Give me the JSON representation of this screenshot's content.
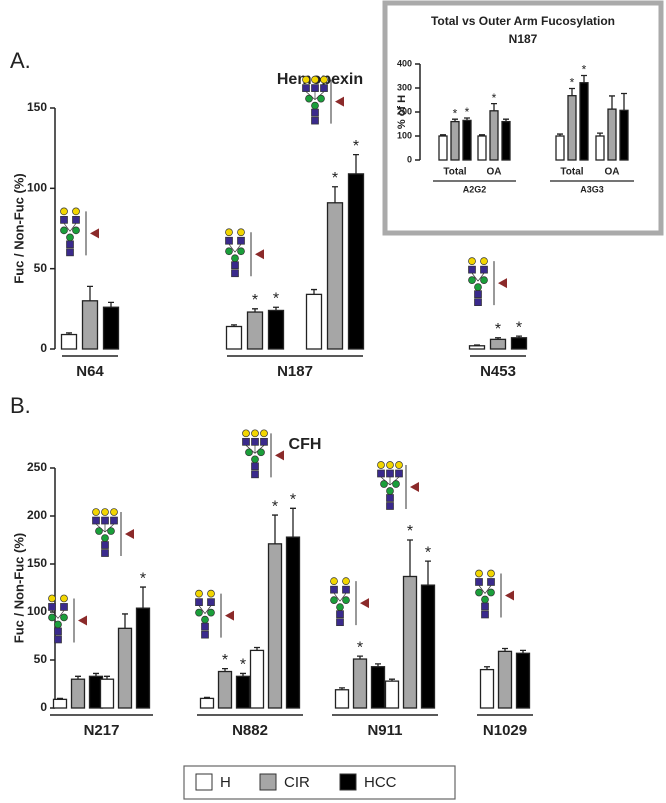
{
  "chart_data": [
    {
      "type": "bar",
      "panel": "A.",
      "title": "Hemopexin",
      "y_label": "Fuc / Non-Fuc (%)",
      "categories": [
        "N64",
        "N187",
        null,
        "N453"
      ],
      "ylim": [
        0,
        150
      ],
      "yticks": [
        0,
        50,
        100,
        150
      ],
      "marker": "*",
      "series": [
        {
          "name": "H",
          "color": "#ffffff",
          "values": [
            9,
            14,
            34,
            2
          ],
          "errors": [
            1,
            1,
            3,
            0.5
          ],
          "starred": [
            false,
            false,
            false,
            false
          ]
        },
        {
          "name": "CIR",
          "color": "#a6a6a6",
          "values": [
            30,
            23,
            91,
            6
          ],
          "errors": [
            9,
            2,
            10,
            1
          ],
          "starred": [
            false,
            true,
            true,
            true
          ]
        },
        {
          "name": "HCC",
          "color": "#000000",
          "values": [
            26,
            24,
            109,
            7
          ],
          "errors": [
            3,
            2,
            12,
            1
          ],
          "starred": [
            false,
            true,
            true,
            true
          ]
        }
      ]
    },
    {
      "type": "bar",
      "title": "Total vs Outer Arm Fucosylation",
      "subtitle": "N187",
      "y_label": "% of H",
      "categories": [
        "Total",
        "OA",
        "Total",
        "OA"
      ],
      "groups": [
        "A2G2",
        "A3G3"
      ],
      "ylim": [
        0,
        400
      ],
      "yticks": [
        0,
        100,
        200,
        300,
        400
      ],
      "marker": "*",
      "series": [
        {
          "name": "H",
          "color": "#ffffff",
          "values": [
            100,
            100,
            100,
            100
          ],
          "errors": [
            5,
            5,
            8,
            12
          ],
          "starred": [
            false,
            false,
            false,
            false
          ]
        },
        {
          "name": "CIR",
          "color": "#a6a6a6",
          "values": [
            160,
            205,
            268,
            212
          ],
          "errors": [
            10,
            30,
            30,
            55
          ],
          "starred": [
            true,
            true,
            true,
            false
          ]
        },
        {
          "name": "HCC",
          "color": "#000000",
          "values": [
            165,
            160,
            322,
            207
          ],
          "errors": [
            10,
            10,
            30,
            70
          ],
          "starred": [
            true,
            false,
            true,
            false
          ]
        }
      ]
    },
    {
      "type": "bar",
      "panel": "B.",
      "title": "CFH",
      "y_label": "Fuc / Non-Fuc (%)",
      "categories": [
        "N217",
        null,
        "N882",
        null,
        "N911",
        null,
        "N1029"
      ],
      "ylim": [
        0,
        250
      ],
      "yticks": [
        0,
        50,
        100,
        150,
        200,
        250
      ],
      "marker": "*",
      "series": [
        {
          "name": "H",
          "color": "#ffffff",
          "values": [
            9,
            30,
            10,
            60,
            19,
            28,
            40
          ],
          "errors": [
            1,
            3,
            1,
            3,
            2,
            2,
            3
          ],
          "starred": [
            false,
            false,
            false,
            false,
            false,
            false,
            false
          ]
        },
        {
          "name": "CIR",
          "color": "#a6a6a6",
          "values": [
            30,
            83,
            38,
            171,
            51,
            137,
            59
          ],
          "errors": [
            3,
            15,
            3,
            30,
            3,
            38,
            3
          ],
          "starred": [
            false,
            false,
            true,
            true,
            true,
            true,
            false
          ]
        },
        {
          "name": "HCC",
          "color": "#000000",
          "values": [
            33,
            104,
            33,
            178,
            43,
            128,
            57
          ],
          "errors": [
            3,
            22,
            3,
            30,
            3,
            25,
            3
          ],
          "starred": [
            false,
            true,
            true,
            true,
            false,
            true,
            false
          ]
        }
      ]
    }
  ]
}
